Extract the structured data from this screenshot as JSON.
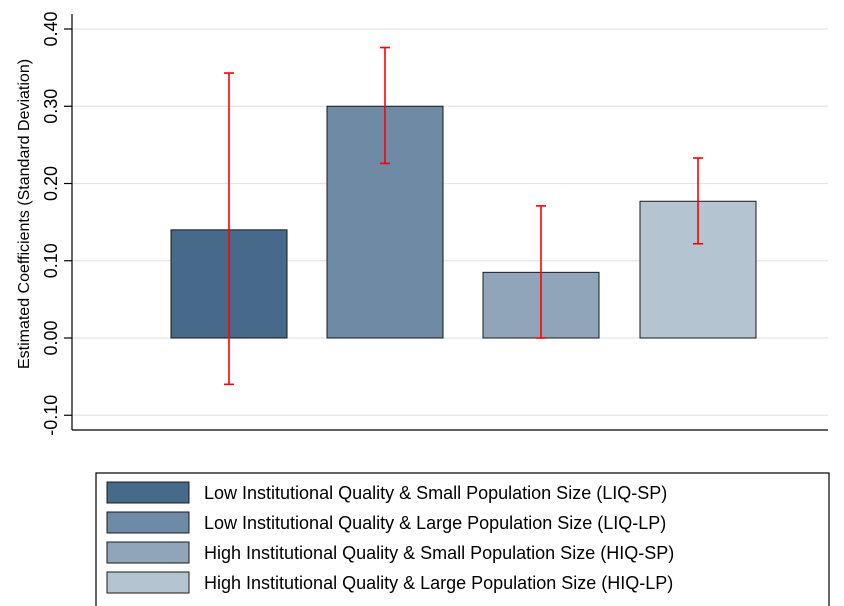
{
  "chart_data": {
    "type": "bar",
    "xlabel": "",
    "ylabel": "Estimated Coefficients (Standard Deviation)",
    "ylim": [
      -0.12,
      0.41
    ],
    "yticks": [
      "-0.10",
      "0.00",
      "0.10",
      "0.20",
      "0.30",
      "0.40"
    ],
    "ytick_values": [
      -0.1,
      0.0,
      0.1,
      0.2,
      0.3,
      0.4
    ],
    "grid": true,
    "legend_position": "bottom",
    "series": [
      {
        "name": "Low Institutional Quality & Small Population Size (LIQ-SP)",
        "value": 0.14,
        "ci_low": -0.06,
        "ci_high": 0.343,
        "color": "#476a8a"
      },
      {
        "name": "Low Institutional Quality & Large Population Size (LIQ-LP)",
        "value": 0.3,
        "ci_low": 0.226,
        "ci_high": 0.376,
        "color": "#6e8aa5"
      },
      {
        "name": "High Institutional Quality & Small Population Size (HIQ-SP)",
        "value": 0.085,
        "ci_low": 0.0,
        "ci_high": 0.171,
        "color": "#90a5b9"
      },
      {
        "name": "High Institutional Quality & Large Population Size (HIQ-LP)",
        "value": 0.177,
        "ci_low": 0.122,
        "ci_high": 0.233,
        "color": "#b5c4d1"
      }
    ],
    "error_bar_color": "#ff0000"
  }
}
